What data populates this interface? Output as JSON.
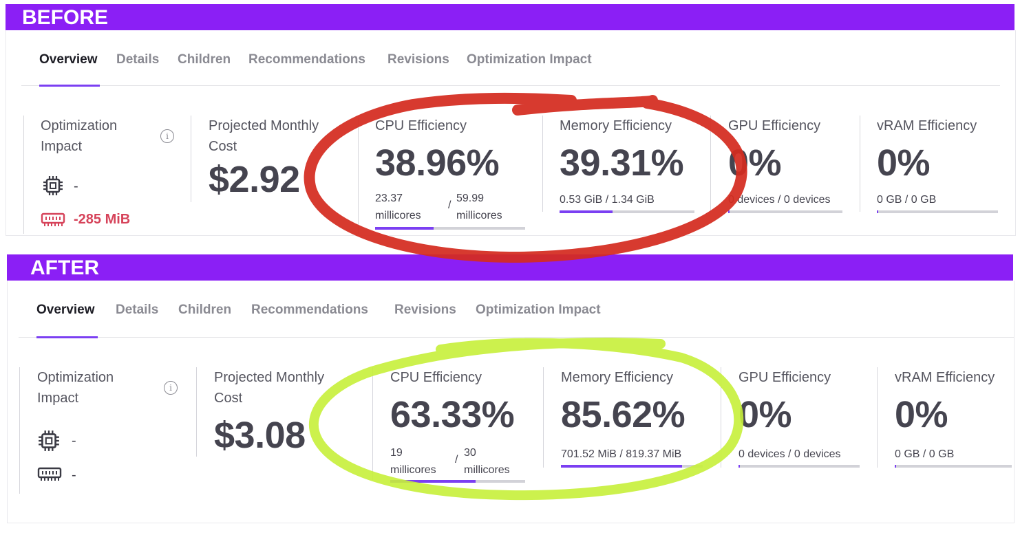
{
  "before": {
    "banner": "BEFORE",
    "tabs": [
      "Overview",
      "Details",
      "Children",
      "Recommendations",
      "Revisions",
      "Optimization Impact"
    ],
    "active_tab": "Overview",
    "optimization_impact": {
      "title": "Optimization Impact",
      "cpu_value": "-",
      "memory_value": "-285 MiB"
    },
    "projected_cost": {
      "title": "Projected Monthly Cost",
      "value": "$2.92"
    },
    "cpu": {
      "title": "CPU Efficiency",
      "value": "38.96%",
      "used": "23.37",
      "used_unit": "millicores",
      "sep": "/",
      "total": "59.99",
      "total_unit": "millicores",
      "fill": 0.3896
    },
    "memory": {
      "title": "Memory Efficiency",
      "value": "39.31%",
      "detail": "0.53 GiB / 1.34 GiB",
      "fill": 0.3931
    },
    "gpu": {
      "title": "GPU Efficiency",
      "value": "0%",
      "detail": "0 devices / 0 devices",
      "fill": 0
    },
    "vram": {
      "title": "vRAM Efficiency",
      "value": "0%",
      "detail": "0 GB / 0 GB",
      "fill": 0
    }
  },
  "after": {
    "banner": "AFTER",
    "tabs": [
      "Overview",
      "Details",
      "Children",
      "Recommendations",
      "Revisions",
      "Optimization Impact"
    ],
    "active_tab": "Overview",
    "optimization_impact": {
      "title": "Optimization Impact",
      "cpu_value": "-",
      "memory_value": "-"
    },
    "projected_cost": {
      "title": "Projected Monthly Cost",
      "value": "$3.08"
    },
    "cpu": {
      "title": "CPU Efficiency",
      "value": "63.33%",
      "used": "19",
      "used_unit": "millicores",
      "sep": "/",
      "total": "30",
      "total_unit": "millicores",
      "fill": 0.6333
    },
    "memory": {
      "title": "Memory Efficiency",
      "value": "85.62%",
      "detail": "701.52 MiB / 819.37 MiB",
      "fill": 0.8562
    },
    "gpu": {
      "title": "GPU Efficiency",
      "value": "0%",
      "detail": "0 devices / 0 devices",
      "fill": 0
    },
    "vram": {
      "title": "vRAM Efficiency",
      "value": "0%",
      "detail": "0 GB / 0 GB",
      "fill": 0
    }
  },
  "colors": {
    "banner": "#8b1ff5",
    "accent": "#7b3ff2",
    "negative": "#d6435a",
    "annotation_red": "#d42b1f",
    "annotation_green": "#c7f03a"
  },
  "icons": {
    "cpu": "cpu-chip-icon",
    "memory": "memory-module-icon",
    "info": "info-icon"
  }
}
